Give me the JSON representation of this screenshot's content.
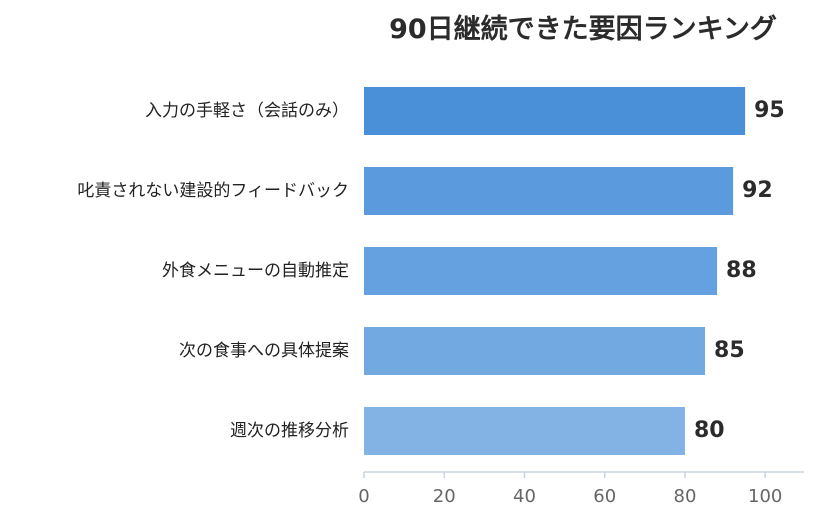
{
  "chart_data": {
    "type": "bar",
    "orientation": "horizontal",
    "title": "90日継続できた要因ランキング",
    "categories": [
      "入力の手軽さ（会話のみ）",
      "叱責されない建設的フィードバック",
      "外食メニューの自動推定",
      "次の食事への具体提案",
      "週次の推移分析"
    ],
    "values": [
      95,
      92,
      88,
      85,
      80
    ],
    "xlim": [
      0,
      110
    ],
    "xticks": [
      0,
      20,
      40,
      60,
      80,
      100
    ],
    "xlabel": "",
    "ylabel": "",
    "grid": false,
    "legend": "none",
    "colors": [
      "#4a90d9",
      "#5b9bdd",
      "#65a0e0",
      "#72a9e1",
      "#82b3e4"
    ],
    "axis_color": "#c8d4e0",
    "text_color": "#2b2b2b",
    "tick_color": "#666666"
  }
}
